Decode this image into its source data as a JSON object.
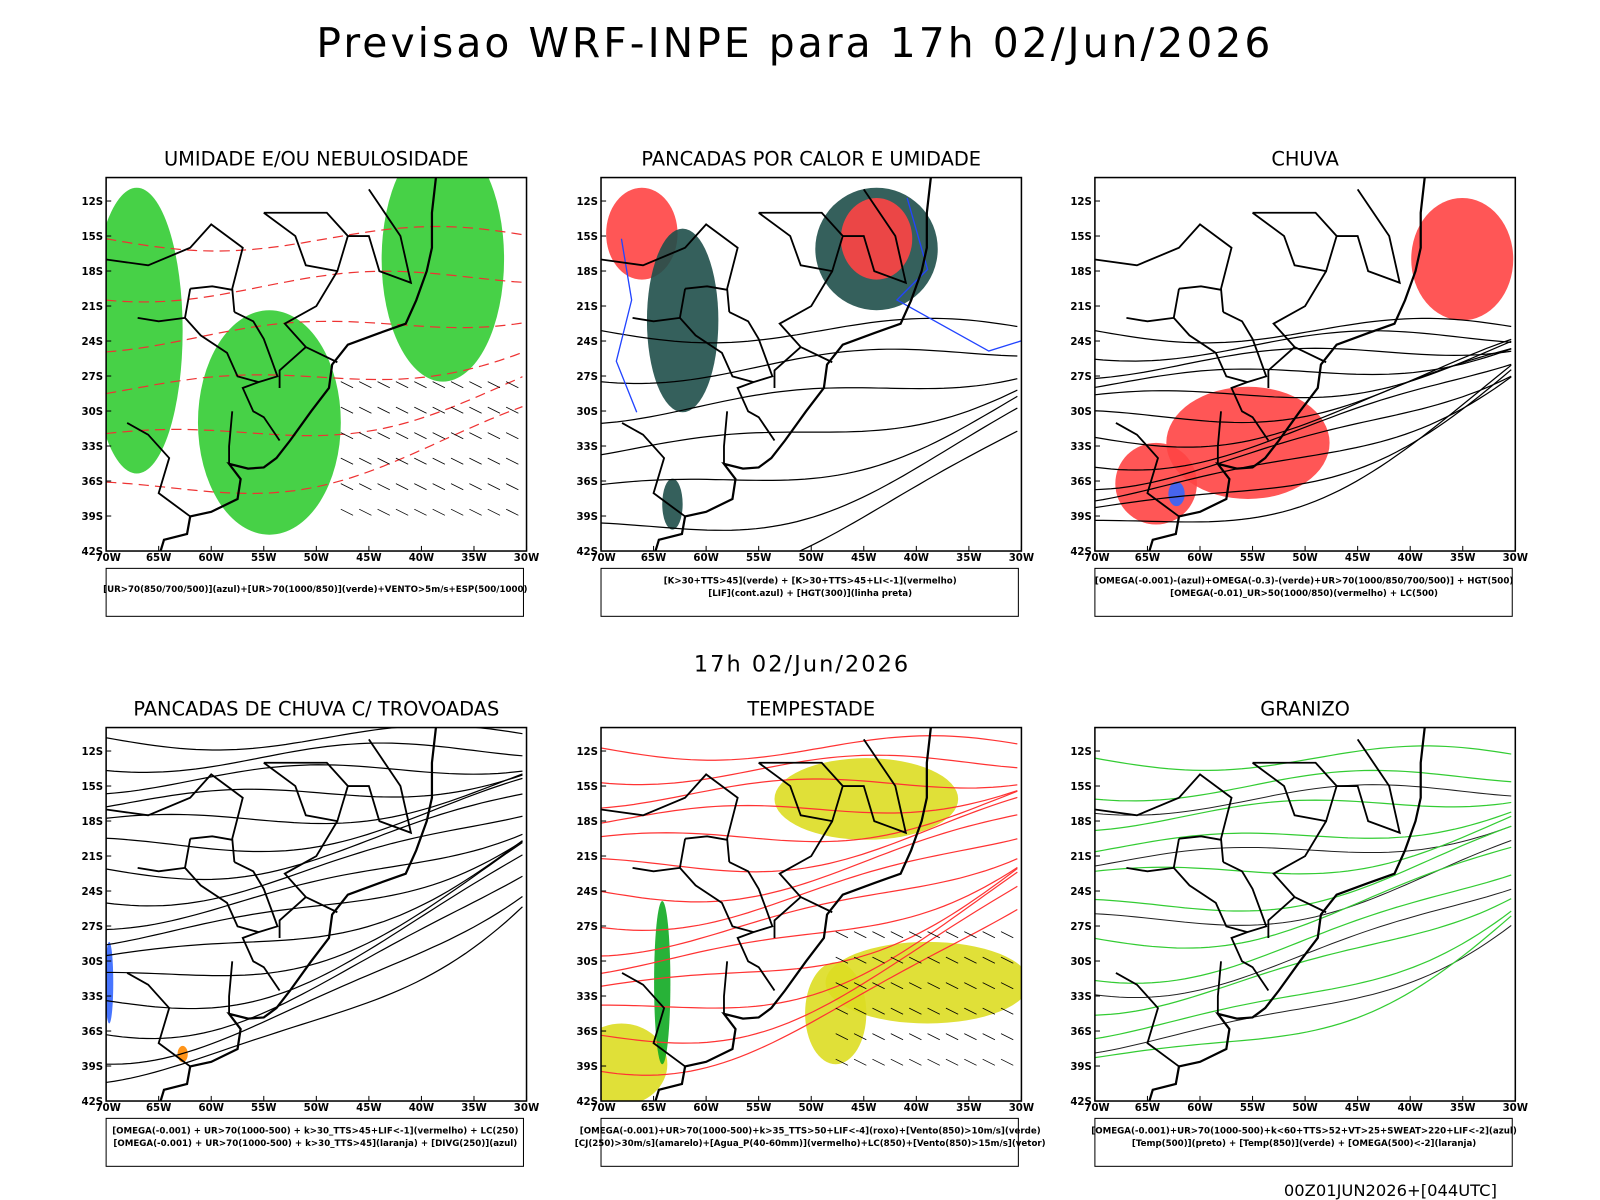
{
  "header": {
    "title": "Previsao WRF-INPE  para 17h 02/Jun/2026",
    "subtitle": "17h 02/Jun/2026",
    "footer": "00Z01JUN2026+[044UTC]"
  },
  "axes": {
    "lat_labels": [
      "12S",
      "15S",
      "18S",
      "21S",
      "24S",
      "27S",
      "30S",
      "33S",
      "36S",
      "39S",
      "42S"
    ],
    "lon_labels": [
      "70W",
      "65W",
      "60W",
      "55W",
      "50W",
      "45W",
      "40W",
      "35W",
      "30W"
    ]
  },
  "panels": [
    {
      "title": "UMIDADE E/OU NEBULOSIDADE",
      "legend": [
        "[UR>70(850/700/500)](azul)+[UR>70(1000/850)](verde)+VENTO>5m/s+ESP(500/1000)"
      ]
    },
    {
      "title": "PANCADAS POR CALOR E UMIDADE",
      "legend": [
        "[K>30+TTS>45](verde) + [K>30+TTS>45+LI<-1](vermelho)",
        "[LIF](cont.azul) + [HGT(300)](linha preta)"
      ]
    },
    {
      "title": "CHUVA",
      "legend": [
        "[OMEGA(-0.001)-(azul)+OMEGA(-0.3)-(verde)+UR>70(1000/850/700/500)] + HGT(500)",
        "[OMEGA(-0.01)_UR>50(1000/850)(vermelho) + LC(500)"
      ]
    },
    {
      "title": "PANCADAS DE CHUVA C/ TROVOADAS",
      "legend": [
        "[OMEGA(-0.001) + UR>70(1000-500) + k>30_TTS>45+LIF<-1](vermelho) + LC(250)",
        "[OMEGA(-0.001) + UR>70(1000-500) + k>30_TTS>45](laranja) + [DIVG(250)](azul)"
      ]
    },
    {
      "title": "TEMPESTADE",
      "legend": [
        "[OMEGA(-0.001)+UR>70(1000-500)+k>35_TTS>50+LIF<-4](roxo)+[Vento(850)>10m/s](verde)",
        "[CJ(250)>30m/s](amarelo)+[Agua_P(40-60mm)](vermelho)+LC(850)+[Vento(850)>15m/s](vetor)"
      ]
    },
    {
      "title": "GRANIZO",
      "legend": [
        "[OMEGA(-0.001)+UR>70(1000-500)+k<60+TTS>52+VT>25+SWEAT>220+LIF<-2](azul)",
        "[Temp(500)](preto) + [Temp(850)](verde) + [OMEGA(500)<-2](laranja)"
      ]
    }
  ]
}
